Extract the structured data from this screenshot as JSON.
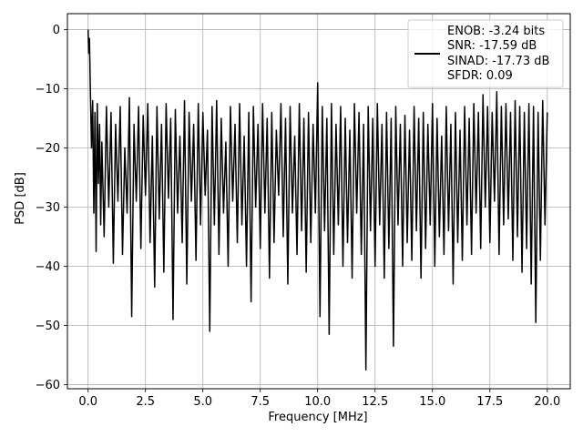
{
  "chart_data": {
    "type": "line",
    "title": "",
    "xlabel": "Frequency [MHz]",
    "ylabel": "PSD [dB]",
    "xlim": [
      -0.9,
      21.0
    ],
    "ylim": [
      -60.7,
      2.7
    ],
    "xticks": [
      0.0,
      2.5,
      5.0,
      7.5,
      10.0,
      12.5,
      15.0,
      17.5,
      20.0
    ],
    "xtick_labels": [
      "0.0",
      "2.5",
      "5.0",
      "7.5",
      "10.0",
      "12.5",
      "15.0",
      "17.5",
      "20.0"
    ],
    "yticks": [
      0,
      -10,
      -20,
      -30,
      -40,
      -50,
      -60
    ],
    "ytick_labels": [
      "0",
      "−10",
      "−20",
      "−30",
      "−40",
      "−50",
      "−60"
    ],
    "grid": true,
    "legend_position": "top-right",
    "legend": [
      "ENOB: -3.24 bits",
      "SNR: -17.59 dB",
      "SINAD: -17.73 dB",
      "SFDR: 0.09"
    ],
    "line_color": "#000000",
    "series": [
      {
        "x": [
          0.0,
          0.03,
          0.06,
          0.1,
          0.15,
          0.2,
          0.25,
          0.3,
          0.35,
          0.4,
          0.45,
          0.5,
          0.55,
          0.6,
          0.7,
          0.8,
          0.9,
          1.0,
          1.1,
          1.2,
          1.3,
          1.4,
          1.5,
          1.6,
          1.7,
          1.8,
          1.9,
          2.0,
          2.1,
          2.2,
          2.3,
          2.4,
          2.5,
          2.6,
          2.7,
          2.8,
          2.9,
          3.0,
          3.1,
          3.2,
          3.3,
          3.4,
          3.5,
          3.6,
          3.7,
          3.8,
          3.9,
          4.0,
          4.1,
          4.2,
          4.3,
          4.4,
          4.5,
          4.6,
          4.7,
          4.8,
          4.9,
          5.0,
          5.1,
          5.2,
          5.3,
          5.4,
          5.5,
          5.6,
          5.7,
          5.8,
          5.9,
          6.0,
          6.1,
          6.2,
          6.3,
          6.4,
          6.5,
          6.6,
          6.7,
          6.8,
          6.9,
          7.0,
          7.1,
          7.2,
          7.3,
          7.4,
          7.5,
          7.6,
          7.7,
          7.8,
          7.9,
          8.0,
          8.1,
          8.2,
          8.3,
          8.4,
          8.5,
          8.6,
          8.7,
          8.8,
          8.9,
          9.0,
          9.1,
          9.2,
          9.3,
          9.4,
          9.5,
          9.6,
          9.7,
          9.8,
          9.9,
          10.0,
          10.1,
          10.2,
          10.3,
          10.4,
          10.5,
          10.6,
          10.7,
          10.8,
          10.9,
          11.0,
          11.1,
          11.2,
          11.3,
          11.4,
          11.5,
          11.6,
          11.7,
          11.8,
          11.9,
          12.0,
          12.1,
          12.2,
          12.3,
          12.4,
          12.5,
          12.6,
          12.7,
          12.8,
          12.9,
          13.0,
          13.1,
          13.2,
          13.3,
          13.4,
          13.5,
          13.6,
          13.7,
          13.8,
          13.9,
          14.0,
          14.1,
          14.2,
          14.3,
          14.4,
          14.5,
          14.6,
          14.7,
          14.8,
          14.9,
          15.0,
          15.1,
          15.2,
          15.3,
          15.4,
          15.5,
          15.6,
          15.7,
          15.8,
          15.9,
          16.0,
          16.1,
          16.2,
          16.3,
          16.4,
          16.5,
          16.6,
          16.7,
          16.8,
          16.9,
          17.0,
          17.1,
          17.2,
          17.3,
          17.4,
          17.5,
          17.6,
          17.7,
          17.8,
          17.9,
          18.0,
          18.1,
          18.2,
          18.3,
          18.4,
          18.5,
          18.6,
          18.7,
          18.8,
          18.9,
          19.0,
          19.1,
          19.2,
          19.3,
          19.4,
          19.5,
          19.6,
          19.7,
          19.8,
          19.9,
          20.0
        ],
        "y": [
          0.0,
          -4.0,
          -1.5,
          -10.5,
          -20.0,
          -12.0,
          -31.0,
          -14.0,
          -37.5,
          -12.5,
          -26.0,
          -16.0,
          -33.0,
          -19.0,
          -35.0,
          -13.0,
          -30.0,
          -14.0,
          -39.5,
          -16.0,
          -29.0,
          -13.0,
          -38.0,
          -20.0,
          -31.0,
          -11.5,
          -48.5,
          -16.0,
          -29.0,
          -13.0,
          -37.0,
          -14.5,
          -28.0,
          -12.5,
          -36.0,
          -18.0,
          -43.5,
          -13.0,
          -32.0,
          -16.0,
          -41.0,
          -12.5,
          -28.5,
          -15.0,
          -49.0,
          -13.5,
          -31.0,
          -18.0,
          -36.0,
          -12.0,
          -43.0,
          -14.0,
          -29.0,
          -16.0,
          -39.0,
          -12.5,
          -33.0,
          -14.0,
          -28.0,
          -17.0,
          -51.0,
          -13.0,
          -33.0,
          -12.0,
          -38.0,
          -15.0,
          -31.0,
          -19.0,
          -40.0,
          -13.0,
          -29.0,
          -16.0,
          -36.0,
          -12.5,
          -33.0,
          -18.0,
          -40.0,
          -14.0,
          -46.0,
          -13.0,
          -30.0,
          -16.0,
          -37.0,
          -12.5,
          -31.0,
          -15.0,
          -42.0,
          -14.0,
          -36.0,
          -17.0,
          -28.0,
          -12.5,
          -35.0,
          -15.0,
          -43.0,
          -13.0,
          -31.0,
          -18.0,
          -38.0,
          -12.5,
          -34.0,
          -15.0,
          -41.0,
          -14.0,
          -36.0,
          -16.0,
          -31.0,
          -9.0,
          -48.5,
          -13.0,
          -34.0,
          -15.0,
          -51.5,
          -12.5,
          -38.0,
          -16.0,
          -33.0,
          -13.0,
          -40.0,
          -15.0,
          -36.0,
          -17.0,
          -42.0,
          -12.5,
          -31.0,
          -14.0,
          -38.0,
          -16.0,
          -57.5,
          -13.0,
          -34.0,
          -15.0,
          -40.0,
          -12.5,
          -33.0,
          -16.0,
          -42.0,
          -14.0,
          -37.0,
          -15.0,
          -53.5,
          -13.0,
          -33.0,
          -16.0,
          -40.0,
          -14.5,
          -36.0,
          -17.0,
          -39.0,
          -13.0,
          -34.0,
          -15.0,
          -42.0,
          -14.0,
          -37.0,
          -16.0,
          -33.0,
          -12.5,
          -40.0,
          -15.0,
          -35.0,
          -18.0,
          -38.0,
          -13.0,
          -34.0,
          -16.0,
          -43.0,
          -14.0,
          -36.0,
          -17.0,
          -39.0,
          -13.0,
          -33.0,
          -15.0,
          -38.0,
          -12.5,
          -31.0,
          -14.0,
          -37.0,
          -11.0,
          -30.0,
          -13.0,
          -36.0,
          -14.0,
          -29.0,
          -10.5,
          -38.0,
          -13.0,
          -33.0,
          -12.5,
          -32.0,
          -14.0,
          -39.0,
          -12.0,
          -35.0,
          -13.0,
          -41.0,
          -14.0,
          -37.0,
          -12.5,
          -43.0,
          -13.0,
          -49.5,
          -14.0,
          -39.0,
          -12.0,
          -33.0,
          -14.0
        ]
      }
    ]
  }
}
